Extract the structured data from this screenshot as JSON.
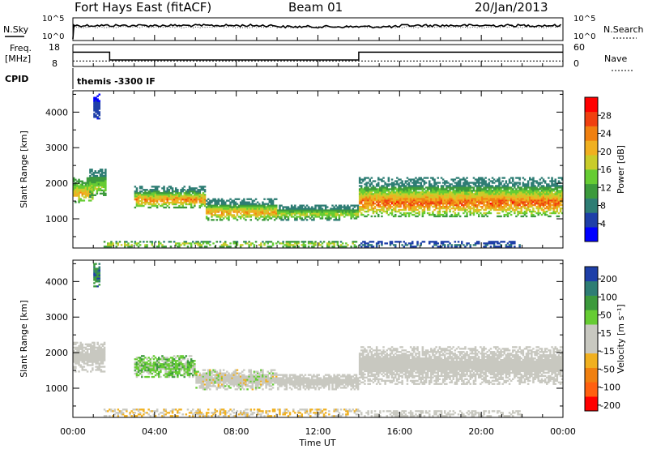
{
  "header": {
    "radar": "Fort Hays East (fitACF)",
    "beam": "Beam 01",
    "date": "20/Jan/2013"
  },
  "sky_panel": {
    "left_label": "N.Sky",
    "right_label": "N.Search",
    "y_ticks": [
      "10^5",
      "10^0"
    ],
    "right_ticks": [
      "10^5",
      "10^0"
    ]
  },
  "freq_panel": {
    "left_label_1": "Freq.",
    "left_label_2": "[MHz]",
    "right_label": "Nave",
    "y_ticks": [
      "18",
      "8"
    ],
    "right_ticks": [
      "60",
      "0"
    ],
    "freq_steps": [
      {
        "from_hour": 0.0,
        "to_hour": 1.8,
        "mhz": 14.5
      },
      {
        "from_hour": 1.8,
        "to_hour": 14.0,
        "mhz": 10.5
      },
      {
        "from_hour": 14.0,
        "to_hour": 24.0,
        "mhz": 14.5
      }
    ],
    "nave_level": 12
  },
  "cpid_panel": {
    "label": "CPID",
    "text": "themis -3300 IF"
  },
  "x_axis": {
    "label": "Time UT",
    "ticks": [
      "00:00",
      "04:00",
      "08:00",
      "12:00",
      "16:00",
      "20:00",
      "00:00"
    ],
    "range_hours": [
      0,
      24
    ]
  },
  "chart_data": [
    {
      "type": "heatmap",
      "name": "power",
      "ylabel": "Slant Range [km]",
      "y_ticks": [
        "4000",
        "3000",
        "2000",
        "1000"
      ],
      "ylim": [
        180,
        4600
      ],
      "colorbar": {
        "label": "Power [dB]",
        "ticks": [
          "28",
          "24",
          "20",
          "16",
          "12",
          "8",
          "4"
        ],
        "range": [
          0,
          32
        ],
        "colors": [
          "#0000ff",
          "#1e3fa8",
          "#2e7d74",
          "#3c9a3c",
          "#66cc33",
          "#c9cc2a",
          "#f0b020",
          "#f08010",
          "#f04010",
          "#ff0000"
        ]
      },
      "regions": [
        {
          "hour_start": 0.0,
          "hour_end": 1.0,
          "range_low": 1450,
          "range_high": 2150,
          "level_low": 8,
          "level_high": 24
        },
        {
          "hour_start": 0.8,
          "hour_end": 1.6,
          "range_low": 1600,
          "range_high": 2400,
          "level_low": 6,
          "level_high": 18
        },
        {
          "hour_start": 1.0,
          "hour_end": 1.3,
          "range_low": 3800,
          "range_high": 4500,
          "level_low": 2,
          "level_high": 6
        },
        {
          "hour_start": 3.0,
          "hour_end": 6.5,
          "range_low": 1300,
          "range_high": 1900,
          "level_low": 4,
          "level_high": 28
        },
        {
          "hour_start": 6.5,
          "hour_end": 10.0,
          "range_low": 950,
          "range_high": 1550,
          "level_low": 4,
          "level_high": 26
        },
        {
          "hour_start": 10.0,
          "hour_end": 14.0,
          "range_low": 950,
          "range_high": 1400,
          "level_low": 4,
          "level_high": 20
        },
        {
          "hour_start": 14.0,
          "hour_end": 24.0,
          "range_low": 1050,
          "range_high": 2150,
          "level_low": 4,
          "level_high": 30
        },
        {
          "hour_start": 1.5,
          "hour_end": 14.0,
          "range_low": 200,
          "range_high": 380,
          "level_low": 6,
          "level_high": 22
        },
        {
          "hour_start": 14.0,
          "hour_end": 22.0,
          "range_low": 200,
          "range_high": 350,
          "level_low": 2,
          "level_high": 10
        }
      ]
    },
    {
      "type": "heatmap",
      "name": "velocity",
      "ylabel": "Slant Range [km]",
      "y_ticks": [
        "4000",
        "3000",
        "2000",
        "1000"
      ],
      "ylim": [
        180,
        4600
      ],
      "colorbar": {
        "label": "Velocity [m s⁻¹]",
        "ticks": [
          "200",
          "100",
          "50",
          "15",
          "-15",
          "-50",
          "-100",
          "-200"
        ],
        "range": [
          -250,
          250
        ],
        "colors": [
          "#ff0000",
          "#ff6010",
          "#f08010",
          "#f0b020",
          "#c8c8c0",
          "#c8c8c0",
          "#66cc33",
          "#3c9a3c",
          "#2e7d74",
          "#1e3fa8"
        ]
      },
      "regions": [
        {
          "hour_start": 0.0,
          "hour_end": 1.6,
          "range_low": 1450,
          "range_high": 2300,
          "level_low": -15,
          "level_high": 15
        },
        {
          "hour_start": 1.0,
          "hour_end": 1.3,
          "range_low": 3800,
          "range_high": 4500,
          "level_low": 100,
          "level_high": 220
        },
        {
          "hour_start": 3.0,
          "hour_end": 6.0,
          "range_low": 1300,
          "range_high": 1900,
          "level_low": 20,
          "level_high": 120
        },
        {
          "hour_start": 6.0,
          "hour_end": 10.0,
          "range_low": 950,
          "range_high": 1500,
          "level_low": -60,
          "level_high": 60
        },
        {
          "hour_start": 10.0,
          "hour_end": 14.0,
          "range_low": 950,
          "range_high": 1400,
          "level_low": -20,
          "level_high": 50
        },
        {
          "hour_start": 14.0,
          "hour_end": 24.0,
          "range_low": 1100,
          "range_high": 2150,
          "level_low": -12,
          "level_high": 12
        },
        {
          "hour_start": 1.5,
          "hour_end": 14.0,
          "range_low": 200,
          "range_high": 400,
          "level_low": -80,
          "level_high": -20
        },
        {
          "hour_start": 14.0,
          "hour_end": 22.0,
          "range_low": 200,
          "range_high": 350,
          "level_low": -30,
          "level_high": 30
        }
      ]
    }
  ]
}
